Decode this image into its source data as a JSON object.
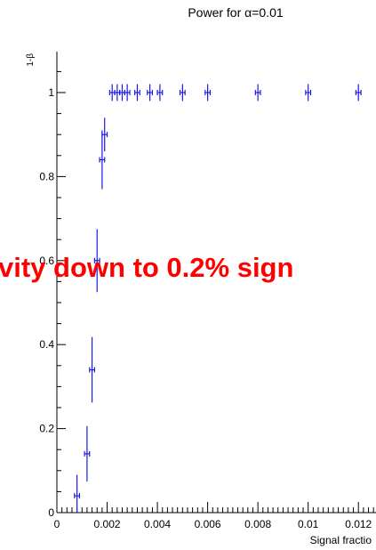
{
  "chart_data": {
    "type": "scatter",
    "title": "Power for α=0.01",
    "xlabel": "Signal fractio",
    "ylabel": "1-β",
    "xlim": [
      0,
      0.013
    ],
    "ylim": [
      0,
      1.1
    ],
    "x_ticks": [
      0,
      0.002,
      0.004,
      0.006,
      0.008,
      0.01,
      0.012
    ],
    "x_tick_labels": [
      "0",
      "0.002",
      "0.004",
      "0.006",
      "0.008",
      "0.01",
      "0.012"
    ],
    "y_ticks": [
      0,
      0.2,
      0.4,
      0.6,
      0.8,
      1
    ],
    "y_tick_labels": [
      "0",
      "0.2",
      "0.4",
      "0.6",
      "0.8",
      "1"
    ],
    "grid": false,
    "color": "#1a1ae6",
    "points": [
      {
        "x": 0.0008,
        "y": 0.04,
        "yerr": 0.05,
        "xerr": 0.0001
      },
      {
        "x": 0.0012,
        "y": 0.14,
        "yerr": 0.066,
        "xerr": 0.0001
      },
      {
        "x": 0.0014,
        "y": 0.34,
        "yerr": 0.078,
        "xerr": 0.0001
      },
      {
        "x": 0.0016,
        "y": 0.6,
        "yerr": 0.075,
        "xerr": 0.0001
      },
      {
        "x": 0.0018,
        "y": 0.84,
        "yerr": 0.07,
        "xerr": 0.0001
      },
      {
        "x": 0.0019,
        "y": 0.9,
        "yerr": 0.04,
        "xerr": 0.0001
      },
      {
        "x": 0.0022,
        "y": 1.0,
        "yerr": 0.02,
        "xerr": 0.0001
      },
      {
        "x": 0.0024,
        "y": 1.0,
        "yerr": 0.02,
        "xerr": 0.0001
      },
      {
        "x": 0.0026,
        "y": 1.0,
        "yerr": 0.02,
        "xerr": 0.0001
      },
      {
        "x": 0.0028,
        "y": 1.0,
        "yerr": 0.02,
        "xerr": 0.0001
      },
      {
        "x": 0.0032,
        "y": 1.0,
        "yerr": 0.02,
        "xerr": 0.0001
      },
      {
        "x": 0.0037,
        "y": 1.0,
        "yerr": 0.02,
        "xerr": 0.0001
      },
      {
        "x": 0.0041,
        "y": 1.0,
        "yerr": 0.02,
        "xerr": 0.0001
      },
      {
        "x": 0.005,
        "y": 1.0,
        "yerr": 0.02,
        "xerr": 0.0001
      },
      {
        "x": 0.006,
        "y": 1.0,
        "yerr": 0.02,
        "xerr": 0.0001
      },
      {
        "x": 0.008,
        "y": 1.0,
        "yerr": 0.02,
        "xerr": 0.0001
      },
      {
        "x": 0.01,
        "y": 1.0,
        "yerr": 0.02,
        "xerr": 0.0001
      },
      {
        "x": 0.012,
        "y": 1.0,
        "yerr": 0.02,
        "xerr": 0.0001
      }
    ]
  },
  "overlay_text": {
    "lead": "…",
    "text": "vity down to 0.2% sign"
  }
}
